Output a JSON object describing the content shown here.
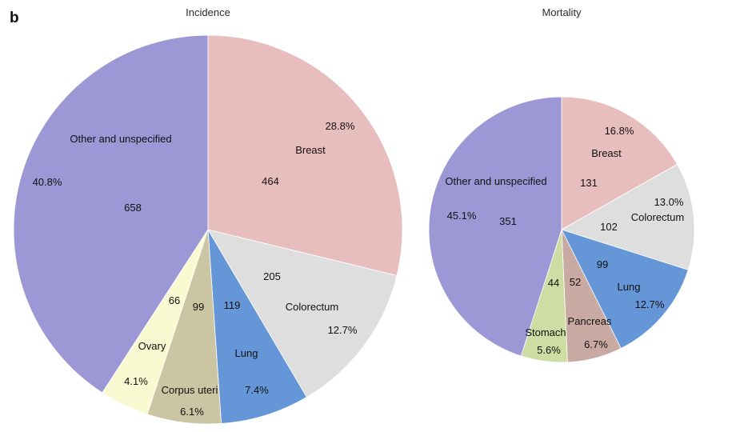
{
  "panel_label": "b",
  "chart_data": [
    {
      "type": "pie",
      "title": "Incidence",
      "slices": [
        {
          "name": "Breast",
          "value": 464,
          "percent": "28.8%",
          "color": "#e8bdbd"
        },
        {
          "name": "Colorectum",
          "value": 205,
          "percent": "12.7%",
          "color": "#dedede"
        },
        {
          "name": "Lung",
          "value": 119,
          "percent": "7.4%",
          "color": "#6496d8"
        },
        {
          "name": "Corpus uteri",
          "value": 99,
          "percent": "6.1%",
          "color": "#cbc5a3"
        },
        {
          "name": "Ovary",
          "value": 66,
          "percent": "4.1%",
          "color": "#fafad2"
        },
        {
          "name": "Other and unspecified",
          "value": 658,
          "percent": "40.8%",
          "color": "#9c97d5"
        }
      ]
    },
    {
      "type": "pie",
      "title": "Mortality",
      "slices": [
        {
          "name": "Breast",
          "value": 131,
          "percent": "16.8%",
          "color": "#e8bdbd"
        },
        {
          "name": "Colorectum",
          "value": 102,
          "percent": "13.0%",
          "color": "#dedede"
        },
        {
          "name": "Lung",
          "value": 99,
          "percent": "12.7%",
          "color": "#6496d8"
        },
        {
          "name": "Pancreas",
          "value": 52,
          "percent": "6.7%",
          "color": "#c9aaa3"
        },
        {
          "name": "Stomach",
          "value": 44,
          "percent": "5.6%",
          "color": "#cedda3"
        },
        {
          "name": "Other and unspecified",
          "value": 351,
          "percent": "45.1%",
          "color": "#9c97d5"
        }
      ]
    }
  ]
}
